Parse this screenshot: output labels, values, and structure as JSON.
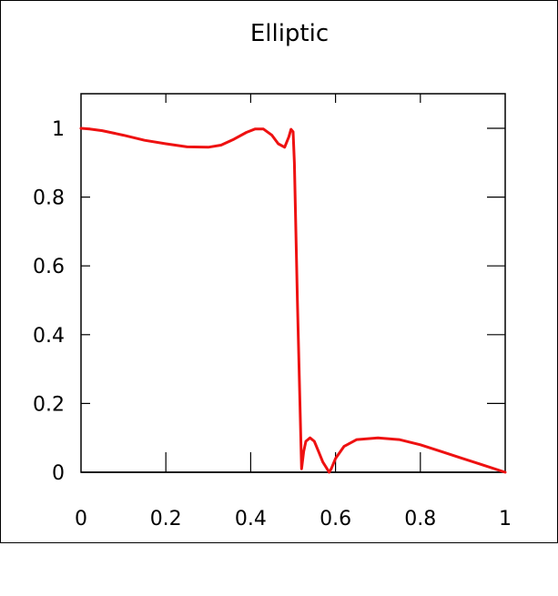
{
  "chart_data": {
    "type": "line",
    "title": "Elliptic",
    "xlabel": "",
    "ylabel": "",
    "xlim": [
      0,
      1
    ],
    "ylim": [
      -0.05,
      1.1
    ],
    "x_ticks": [
      0,
      0.2,
      0.4,
      0.6,
      0.8,
      1
    ],
    "x_tick_labels": [
      "0",
      "0.2",
      "0.4",
      "0.6",
      "0.8",
      "1"
    ],
    "y_ticks": [
      0,
      0.2,
      0.4,
      0.6,
      0.8,
      1
    ],
    "y_tick_labels": [
      "0",
      "0.2",
      "0.4",
      "0.6",
      "0.8",
      "1"
    ],
    "grid": false,
    "line_color": "#ee1111",
    "series": [
      {
        "x": [
          0,
          0.02,
          0.05,
          0.1,
          0.15,
          0.2,
          0.25,
          0.3,
          0.33,
          0.36,
          0.39,
          0.41,
          0.43,
          0.45,
          0.465,
          0.48,
          0.49,
          0.495,
          0.5,
          0.503,
          0.51,
          0.52,
          0.525,
          0.53,
          0.54,
          0.55,
          0.56,
          0.57,
          0.58,
          0.585,
          0.59,
          0.6,
          0.62,
          0.65,
          0.7,
          0.75,
          0.8,
          0.85,
          0.9,
          0.95,
          1.0
        ],
        "y": [
          1.0,
          0.998,
          0.993,
          0.98,
          0.965,
          0.955,
          0.946,
          0.945,
          0.951,
          0.968,
          0.988,
          0.998,
          0.998,
          0.98,
          0.955,
          0.945,
          0.975,
          0.997,
          0.99,
          0.9,
          0.5,
          0.01,
          0.06,
          0.09,
          0.1,
          0.09,
          0.06,
          0.03,
          0.01,
          0.0,
          0.01,
          0.04,
          0.075,
          0.095,
          0.1,
          0.095,
          0.08,
          0.06,
          0.04,
          0.02,
          0.0
        ]
      }
    ]
  }
}
